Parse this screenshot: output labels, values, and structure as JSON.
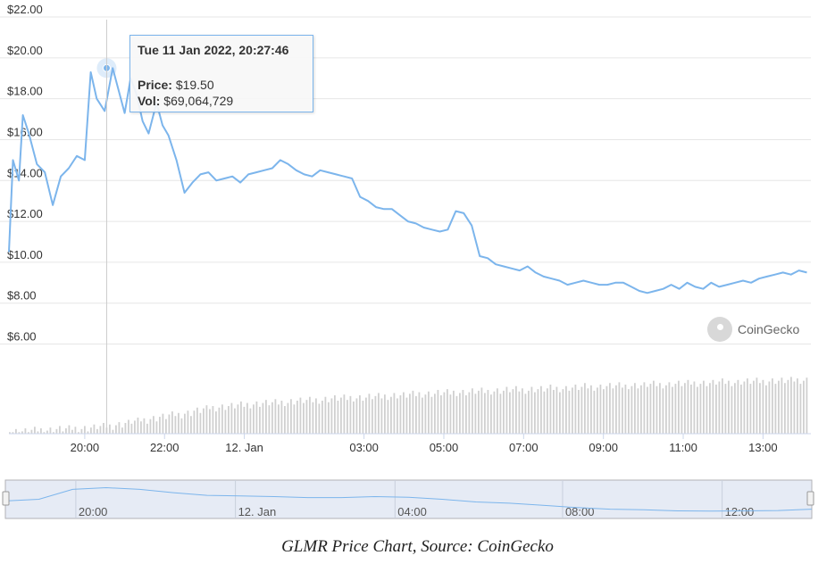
{
  "chart_data": {
    "type": "line",
    "y_tick_labels": [
      "$22.00",
      "$20.00",
      "$18.00",
      "$16.00",
      "$14.00",
      "$12.00",
      "$10.00",
      "$8.00",
      "$6.00"
    ],
    "y_ticks": [
      22,
      20,
      18,
      16,
      14,
      12,
      10,
      8,
      6
    ],
    "ylim": [
      5.5,
      22
    ],
    "x_tick_labels": [
      "20:00",
      "22:00",
      "12. Jan",
      "03:00",
      "05:00",
      "07:00",
      "09:00",
      "11:00",
      "13:00"
    ],
    "x_ticks": [
      1.9,
      3.9,
      5.9,
      8.9,
      10.9,
      12.9,
      14.9,
      16.9,
      18.9
    ],
    "xlim": [
      0,
      20.1
    ],
    "grid": true,
    "price_series": {
      "x": [
        0,
        0.1,
        0.25,
        0.35,
        0.5,
        0.7,
        0.9,
        1.1,
        1.3,
        1.5,
        1.7,
        1.9,
        2.05,
        2.2,
        2.4,
        2.6,
        2.75,
        2.9,
        3.05,
        3.2,
        3.35,
        3.5,
        3.7,
        3.85,
        4.0,
        4.2,
        4.4,
        4.6,
        4.8,
        5.0,
        5.2,
        5.4,
        5.6,
        5.8,
        6.0,
        6.2,
        6.4,
        6.6,
        6.8,
        7.0,
        7.2,
        7.4,
        7.6,
        7.8,
        8.0,
        8.2,
        8.4,
        8.6,
        8.8,
        9.0,
        9.2,
        9.4,
        9.6,
        9.8,
        10.0,
        10.2,
        10.4,
        10.6,
        10.8,
        11.0,
        11.2,
        11.4,
        11.6,
        11.8,
        12.0,
        12.2,
        12.4,
        12.6,
        12.8,
        13.0,
        13.2,
        13.4,
        13.6,
        13.8,
        14.0,
        14.2,
        14.4,
        14.6,
        14.8,
        15.0,
        15.2,
        15.4,
        15.6,
        15.8,
        16.0,
        16.2,
        16.4,
        16.6,
        16.8,
        17.0,
        17.2,
        17.4,
        17.6,
        17.8,
        18.0,
        18.2,
        18.4,
        18.6,
        18.8,
        19.0,
        19.2,
        19.4,
        19.6,
        19.8,
        20.0
      ],
      "values": [
        10.5,
        15.0,
        14.0,
        17.2,
        16.3,
        14.8,
        14.4,
        12.8,
        14.2,
        14.6,
        15.2,
        15.0,
        19.3,
        18.0,
        17.4,
        19.5,
        18.4,
        17.3,
        19.0,
        18.2,
        16.9,
        16.3,
        17.8,
        16.7,
        16.2,
        15.0,
        13.4,
        13.9,
        14.3,
        14.4,
        14.0,
        14.1,
        14.2,
        13.9,
        14.3,
        14.4,
        14.5,
        14.6,
        15.0,
        14.8,
        14.5,
        14.3,
        14.2,
        14.5,
        14.4,
        14.3,
        14.2,
        14.1,
        13.2,
        13.0,
        12.7,
        12.6,
        12.6,
        12.3,
        12.0,
        11.9,
        11.7,
        11.6,
        11.5,
        11.6,
        12.5,
        12.4,
        11.8,
        10.3,
        10.2,
        9.9,
        9.8,
        9.7,
        9.6,
        9.8,
        9.5,
        9.3,
        9.2,
        9.1,
        8.9,
        9.0,
        9.1,
        9.0,
        8.9,
        8.9,
        9.0,
        9.0,
        8.8,
        8.6,
        8.5,
        8.6,
        8.7,
        8.9,
        8.7,
        9.0,
        8.8,
        8.7,
        9.0,
        8.8,
        8.9,
        9.0,
        9.1,
        9.0,
        9.2,
        9.3,
        9.4,
        9.5,
        9.4,
        9.6,
        9.5
      ],
      "color": "#7cb5ec"
    },
    "volume_bars_relative": [
      0.03,
      0.03,
      0.04,
      0.05,
      0.05,
      0.06,
      0.06,
      0.07,
      0.07,
      0.08,
      0.09,
      0.1,
      0.12,
      0.14,
      0.16,
      0.18,
      0.2,
      0.22,
      0.24,
      0.25,
      0.27,
      0.3,
      0.32,
      0.34,
      0.35,
      0.36,
      0.37,
      0.38,
      0.39,
      0.4,
      0.4,
      0.41,
      0.42,
      0.43,
      0.43,
      0.44,
      0.45,
      0.46,
      0.46,
      0.47,
      0.47,
      0.48,
      0.48,
      0.49,
      0.5,
      0.5,
      0.51,
      0.52,
      0.52,
      0.53,
      0.53,
      0.54,
      0.54,
      0.55,
      0.55,
      0.56,
      0.56,
      0.57,
      0.57,
      0.57,
      0.58,
      0.58,
      0.59,
      0.59,
      0.6,
      0.6,
      0.61,
      0.61,
      0.62,
      0.62,
      0.62,
      0.63,
      0.63,
      0.64,
      0.64,
      0.64,
      0.65,
      0.65,
      0.66,
      0.66,
      0.66,
      0.67,
      0.67,
      0.67,
      0.68,
      0.68,
      0.68,
      0.69,
      0.69,
      0.69,
      0.7,
      0.7
    ],
    "tooltip": {
      "header": "Tue 11 Jan 2022, 20:27:46",
      "price_label": "Price:",
      "price_value": "$19.50",
      "vol_label": "Vol:",
      "vol_value": "$69,064,729"
    },
    "hover_point": {
      "x": 2.45,
      "y": 19.5
    },
    "navigator_labels": [
      "20:00",
      "12. Jan",
      "04:00",
      "08:00",
      "12:00"
    ],
    "navigator_ticks": [
      1.9,
      5.9,
      9.9,
      14.1,
      18.1
    ],
    "navigator_series": [
      0.45,
      0.5,
      0.8,
      0.85,
      0.8,
      0.7,
      0.62,
      0.6,
      0.58,
      0.55,
      0.55,
      0.58,
      0.56,
      0.5,
      0.42,
      0.38,
      0.32,
      0.25,
      0.2,
      0.18,
      0.15,
      0.14,
      0.15,
      0.16,
      0.2
    ]
  },
  "watermark_text": "CoinGecko",
  "caption": "GLMR Price Chart, Source: CoinGecko"
}
